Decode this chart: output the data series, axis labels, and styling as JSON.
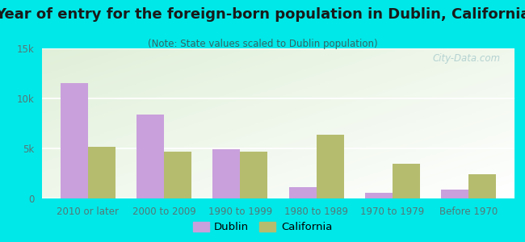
{
  "title": "Year of entry for the foreign-born population in Dublin, California",
  "subtitle": "(Note: State values scaled to Dublin population)",
  "categories": [
    "2010 or later",
    "2000 to 2009",
    "1990 to 1999",
    "1980 to 1989",
    "1970 to 1979",
    "Before 1970"
  ],
  "dublin_values": [
    11500,
    8400,
    4900,
    1100,
    600,
    850
  ],
  "california_values": [
    5200,
    4700,
    4700,
    6400,
    3500,
    2400
  ],
  "dublin_color": "#c9a0dc",
  "california_color": "#b5bc6e",
  "background_outer": "#00e8e8",
  "background_inner": "#e8f2e0",
  "ylim": [
    0,
    15000
  ],
  "yticks": [
    0,
    5000,
    10000,
    15000
  ],
  "ytick_labels": [
    "0",
    "5k",
    "10k",
    "15k"
  ],
  "title_fontsize": 13,
  "subtitle_fontsize": 8.5,
  "axis_label_fontsize": 8.5,
  "legend_fontsize": 9.5,
  "bar_width": 0.36,
  "watermark": "City-Data.com"
}
